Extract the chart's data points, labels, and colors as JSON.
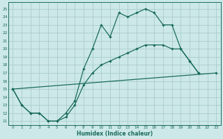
{
  "xlabel": "Humidex (Indice chaleur)",
  "bg_color": "#cce8e8",
  "grid_color": "#aacccc",
  "line_color": "#1a6b5a",
  "marker": "D",
  "markersize": 1.8,
  "linewidth": 0.9,
  "xlim": [
    -0.5,
    23.5
  ],
  "ylim": [
    10.5,
    25.8
  ],
  "xticks": [
    0,
    1,
    2,
    3,
    4,
    5,
    6,
    7,
    8,
    9,
    10,
    11,
    12,
    13,
    14,
    15,
    16,
    17,
    18,
    19,
    20,
    21,
    22,
    23
  ],
  "yticks": [
    11,
    12,
    13,
    14,
    15,
    16,
    17,
    18,
    19,
    20,
    21,
    22,
    23,
    24,
    25
  ],
  "series": [
    {
      "x": [
        0,
        1,
        2,
        3,
        4,
        5,
        6,
        7,
        8,
        9,
        10,
        11,
        12,
        13,
        14,
        15,
        16,
        17,
        18,
        19,
        20,
        21
      ],
      "y": [
        15,
        13,
        12,
        12,
        11,
        11,
        12,
        13.5,
        17.5,
        20,
        23,
        21.5,
        24.5,
        24,
        24.5,
        25,
        24.5,
        23,
        23,
        20,
        18.5,
        17
      ]
    },
    {
      "x": [
        0,
        1,
        2,
        3,
        4,
        5,
        6,
        7,
        8,
        9,
        10,
        11,
        12,
        13,
        14,
        15,
        16,
        17,
        18,
        19,
        20,
        21
      ],
      "y": [
        15,
        13,
        12,
        12,
        11,
        11,
        11.5,
        13,
        15.5,
        17,
        18,
        18.5,
        19,
        19.5,
        20,
        20.5,
        20.5,
        20.5,
        20,
        20,
        18.5,
        17
      ]
    },
    {
      "x": [
        0,
        23
      ],
      "y": [
        15,
        17
      ]
    }
  ]
}
